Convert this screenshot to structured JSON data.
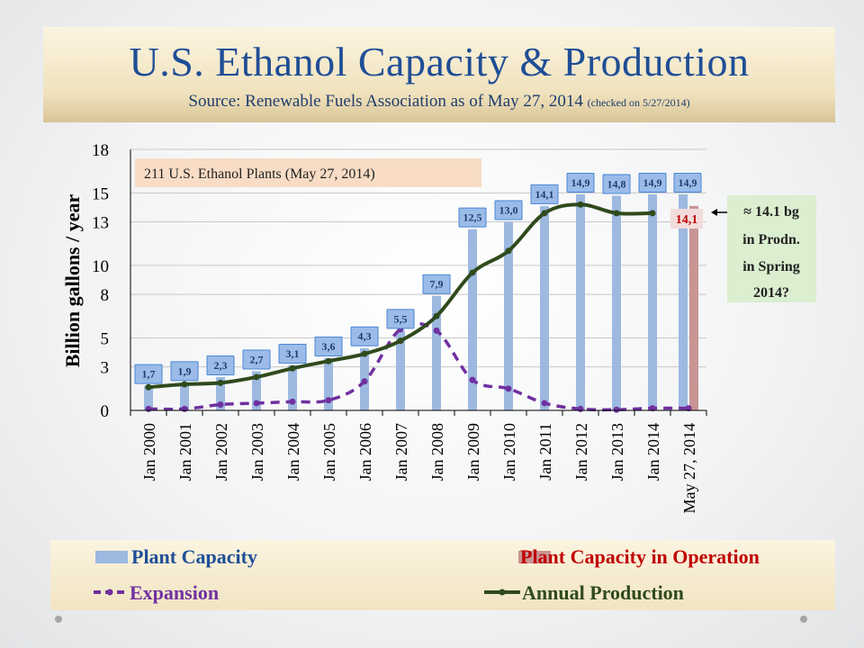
{
  "header": {
    "title": "U.S. Ethanol Capacity & Production",
    "subtitle": "Source: Renewable Fuels Association as of May 27, 2014",
    "checked_note": "(checked on 5/27/2014)"
  },
  "annotations": {
    "plants_box": "211 U.S. Ethanol Plants (May 27, 2014)",
    "estimate_box": [
      "≈ 14.1 bg",
      "in Prodn.",
      "in Spring",
      "2014?"
    ]
  },
  "legend": {
    "capacity": "Plant Capacity",
    "in_operation": "Plant Capacity in Operation",
    "expansion": "Expansion",
    "production": "Annual Production"
  },
  "colors": {
    "capacity": "#9db9e0",
    "in_operation": "#c99494",
    "expansion": "#7030a0",
    "production": "#2f4a1c",
    "title": "#1f4e96",
    "label_box": "#4a86d4",
    "estimate_box": "#dbeecf",
    "plants_box": "#f8dcc5"
  },
  "chart_data": {
    "type": "bar",
    "ylabel": "Billion gallons / year",
    "xlabel": "",
    "ylim": [
      0,
      18
    ],
    "yticks": [
      0,
      3,
      5,
      8,
      10,
      13,
      15,
      18
    ],
    "grid": true,
    "categories": [
      "Jan 2000",
      "Jan 2001",
      "Jan 2002",
      "Jan 2003",
      "Jan 2004",
      "Jan 2005",
      "Jan 2006",
      "Jan 2007",
      "Jan 2008",
      "Jan 2009",
      "Jan 2010",
      "Jan 2011",
      "Jan 2012",
      "Jan 2013",
      "Jan 2014",
      "May 27, 2014"
    ],
    "series": [
      {
        "name": "Plant Capacity",
        "kind": "bar",
        "values": [
          1.7,
          1.9,
          2.3,
          2.7,
          3.1,
          3.6,
          4.3,
          5.5,
          7.9,
          12.5,
          13.0,
          14.1,
          14.9,
          14.8,
          14.9,
          14.9
        ],
        "labels": [
          "1,7",
          "1,9",
          "2,3",
          "2,7",
          "3,1",
          "3,6",
          "4,3",
          "5,5",
          "7,9",
          "12,5",
          "13,0",
          "14,1",
          "14,9",
          "14,8",
          "14,9",
          "14,9"
        ]
      },
      {
        "name": "Plant Capacity in Operation",
        "kind": "bar",
        "values": [
          null,
          null,
          null,
          null,
          null,
          null,
          null,
          null,
          null,
          null,
          null,
          null,
          null,
          null,
          null,
          14.1
        ],
        "labels": [
          null,
          null,
          null,
          null,
          null,
          null,
          null,
          null,
          null,
          null,
          null,
          null,
          null,
          null,
          null,
          "14,1"
        ]
      },
      {
        "name": "Expansion",
        "kind": "line-dashed",
        "values": [
          0.1,
          0.1,
          0.4,
          0.5,
          0.6,
          0.7,
          2.0,
          5.6,
          5.5,
          2.1,
          1.5,
          0.5,
          0.1,
          0.05,
          0.15,
          0.15
        ]
      },
      {
        "name": "Annual Production",
        "kind": "line",
        "values": [
          1.6,
          1.8,
          1.9,
          2.3,
          2.9,
          3.4,
          3.9,
          4.8,
          6.5,
          9.5,
          11.0,
          13.6,
          14.2,
          13.6,
          13.6,
          null
        ]
      }
    ]
  }
}
